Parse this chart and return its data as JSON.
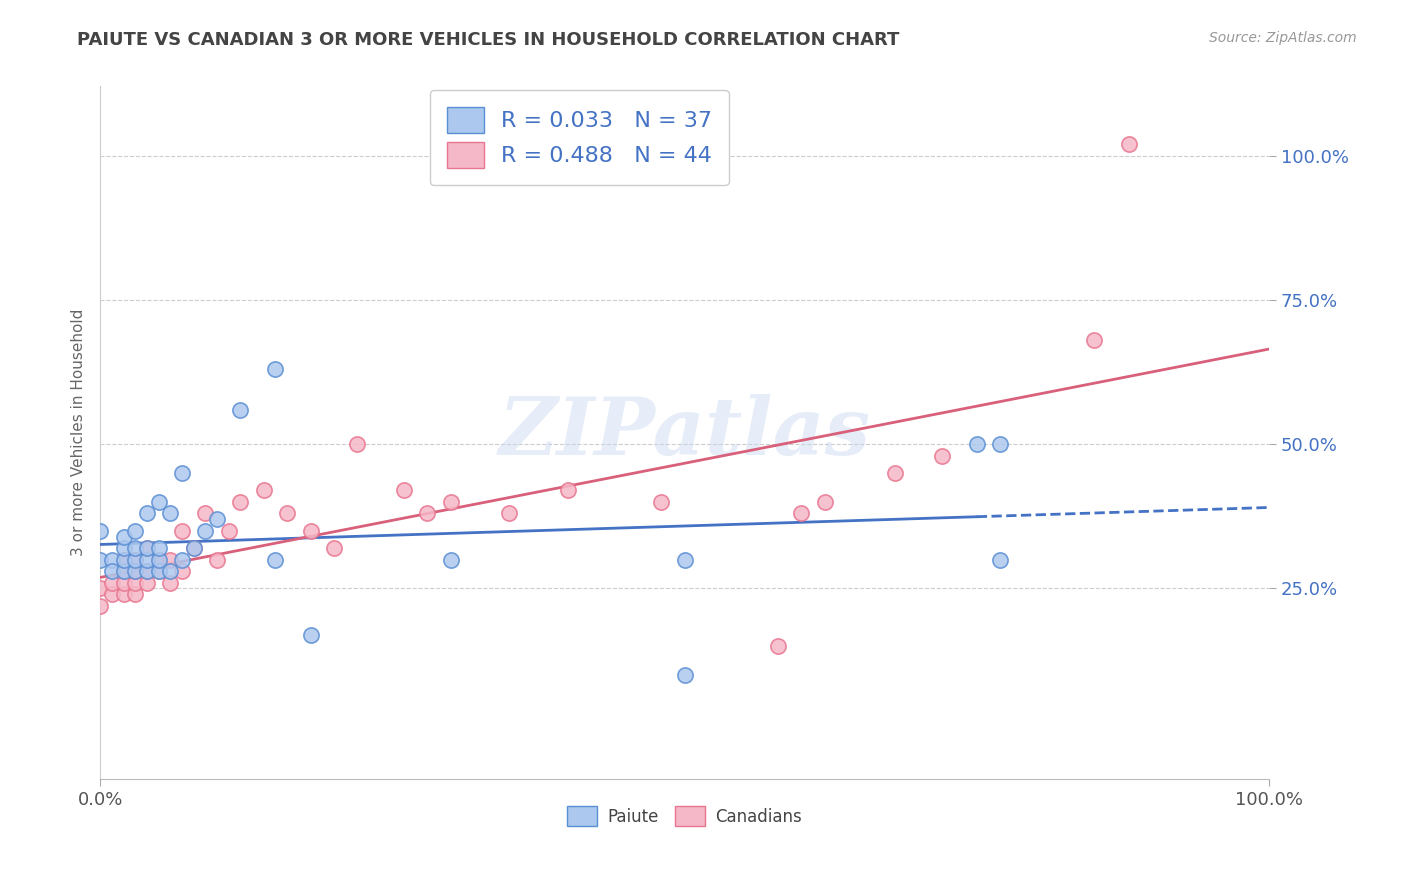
{
  "title": "PAIUTE VS CANADIAN 3 OR MORE VEHICLES IN HOUSEHOLD CORRELATION CHART",
  "source_text": "Source: ZipAtlas.com",
  "ylabel": "3 or more Vehicles in Household",
  "watermark": "ZIPatlas",
  "xlim": [
    0.0,
    1.0
  ],
  "ylim": [
    -0.08,
    1.12
  ],
  "x_tick_labels": [
    "0.0%",
    "100.0%"
  ],
  "y_tick_labels": [
    "25.0%",
    "50.0%",
    "75.0%",
    "100.0%"
  ],
  "y_tick_values": [
    0.25,
    0.5,
    0.75,
    1.0
  ],
  "paiute_R": "0.033",
  "paiute_N": "37",
  "canadian_R": "0.488",
  "canadian_N": "44",
  "paiute_color": "#adc8ee",
  "canadian_color": "#f5b8c8",
  "paiute_edge_color": "#5b8fd4",
  "canadian_edge_color": "#e8758f",
  "paiute_line_color": "#4472c4",
  "canadian_line_color": "#d9607a",
  "legend_paiute_label": "Paiute",
  "legend_canadian_label": "Canadians",
  "background_color": "#ffffff",
  "grid_color": "#cccccc",
  "title_color": "#444444",
  "label_color": "#4472c4",
  "paiute_x": [
    0.0,
    0.0,
    0.01,
    0.01,
    0.02,
    0.02,
    0.02,
    0.02,
    0.03,
    0.03,
    0.03,
    0.03,
    0.04,
    0.04,
    0.04,
    0.04,
    0.05,
    0.05,
    0.05,
    0.05,
    0.06,
    0.06,
    0.07,
    0.07,
    0.08,
    0.09,
    0.1,
    0.12,
    0.15,
    0.18,
    0.3,
    0.5,
    0.5,
    0.75,
    0.77,
    0.77,
    0.15
  ],
  "paiute_y": [
    0.3,
    0.35,
    0.3,
    0.28,
    0.28,
    0.3,
    0.32,
    0.34,
    0.28,
    0.3,
    0.32,
    0.35,
    0.28,
    0.3,
    0.32,
    0.38,
    0.28,
    0.3,
    0.32,
    0.4,
    0.28,
    0.38,
    0.3,
    0.45,
    0.32,
    0.35,
    0.37,
    0.56,
    0.3,
    0.17,
    0.3,
    0.1,
    0.3,
    0.5,
    0.5,
    0.3,
    0.63
  ],
  "canadian_x": [
    0.0,
    0.0,
    0.01,
    0.01,
    0.02,
    0.02,
    0.02,
    0.02,
    0.03,
    0.03,
    0.03,
    0.03,
    0.04,
    0.04,
    0.04,
    0.05,
    0.05,
    0.06,
    0.06,
    0.07,
    0.07,
    0.08,
    0.09,
    0.1,
    0.11,
    0.12,
    0.14,
    0.16,
    0.18,
    0.2,
    0.22,
    0.26,
    0.28,
    0.3,
    0.35,
    0.4,
    0.48,
    0.58,
    0.6,
    0.62,
    0.68,
    0.72,
    0.85,
    0.88
  ],
  "canadian_y": [
    0.22,
    0.25,
    0.24,
    0.26,
    0.24,
    0.26,
    0.28,
    0.3,
    0.24,
    0.26,
    0.28,
    0.3,
    0.26,
    0.28,
    0.32,
    0.28,
    0.3,
    0.26,
    0.3,
    0.28,
    0.35,
    0.32,
    0.38,
    0.3,
    0.35,
    0.4,
    0.42,
    0.38,
    0.35,
    0.32,
    0.5,
    0.42,
    0.38,
    0.4,
    0.38,
    0.42,
    0.4,
    0.15,
    0.38,
    0.4,
    0.45,
    0.48,
    0.68,
    1.02
  ]
}
